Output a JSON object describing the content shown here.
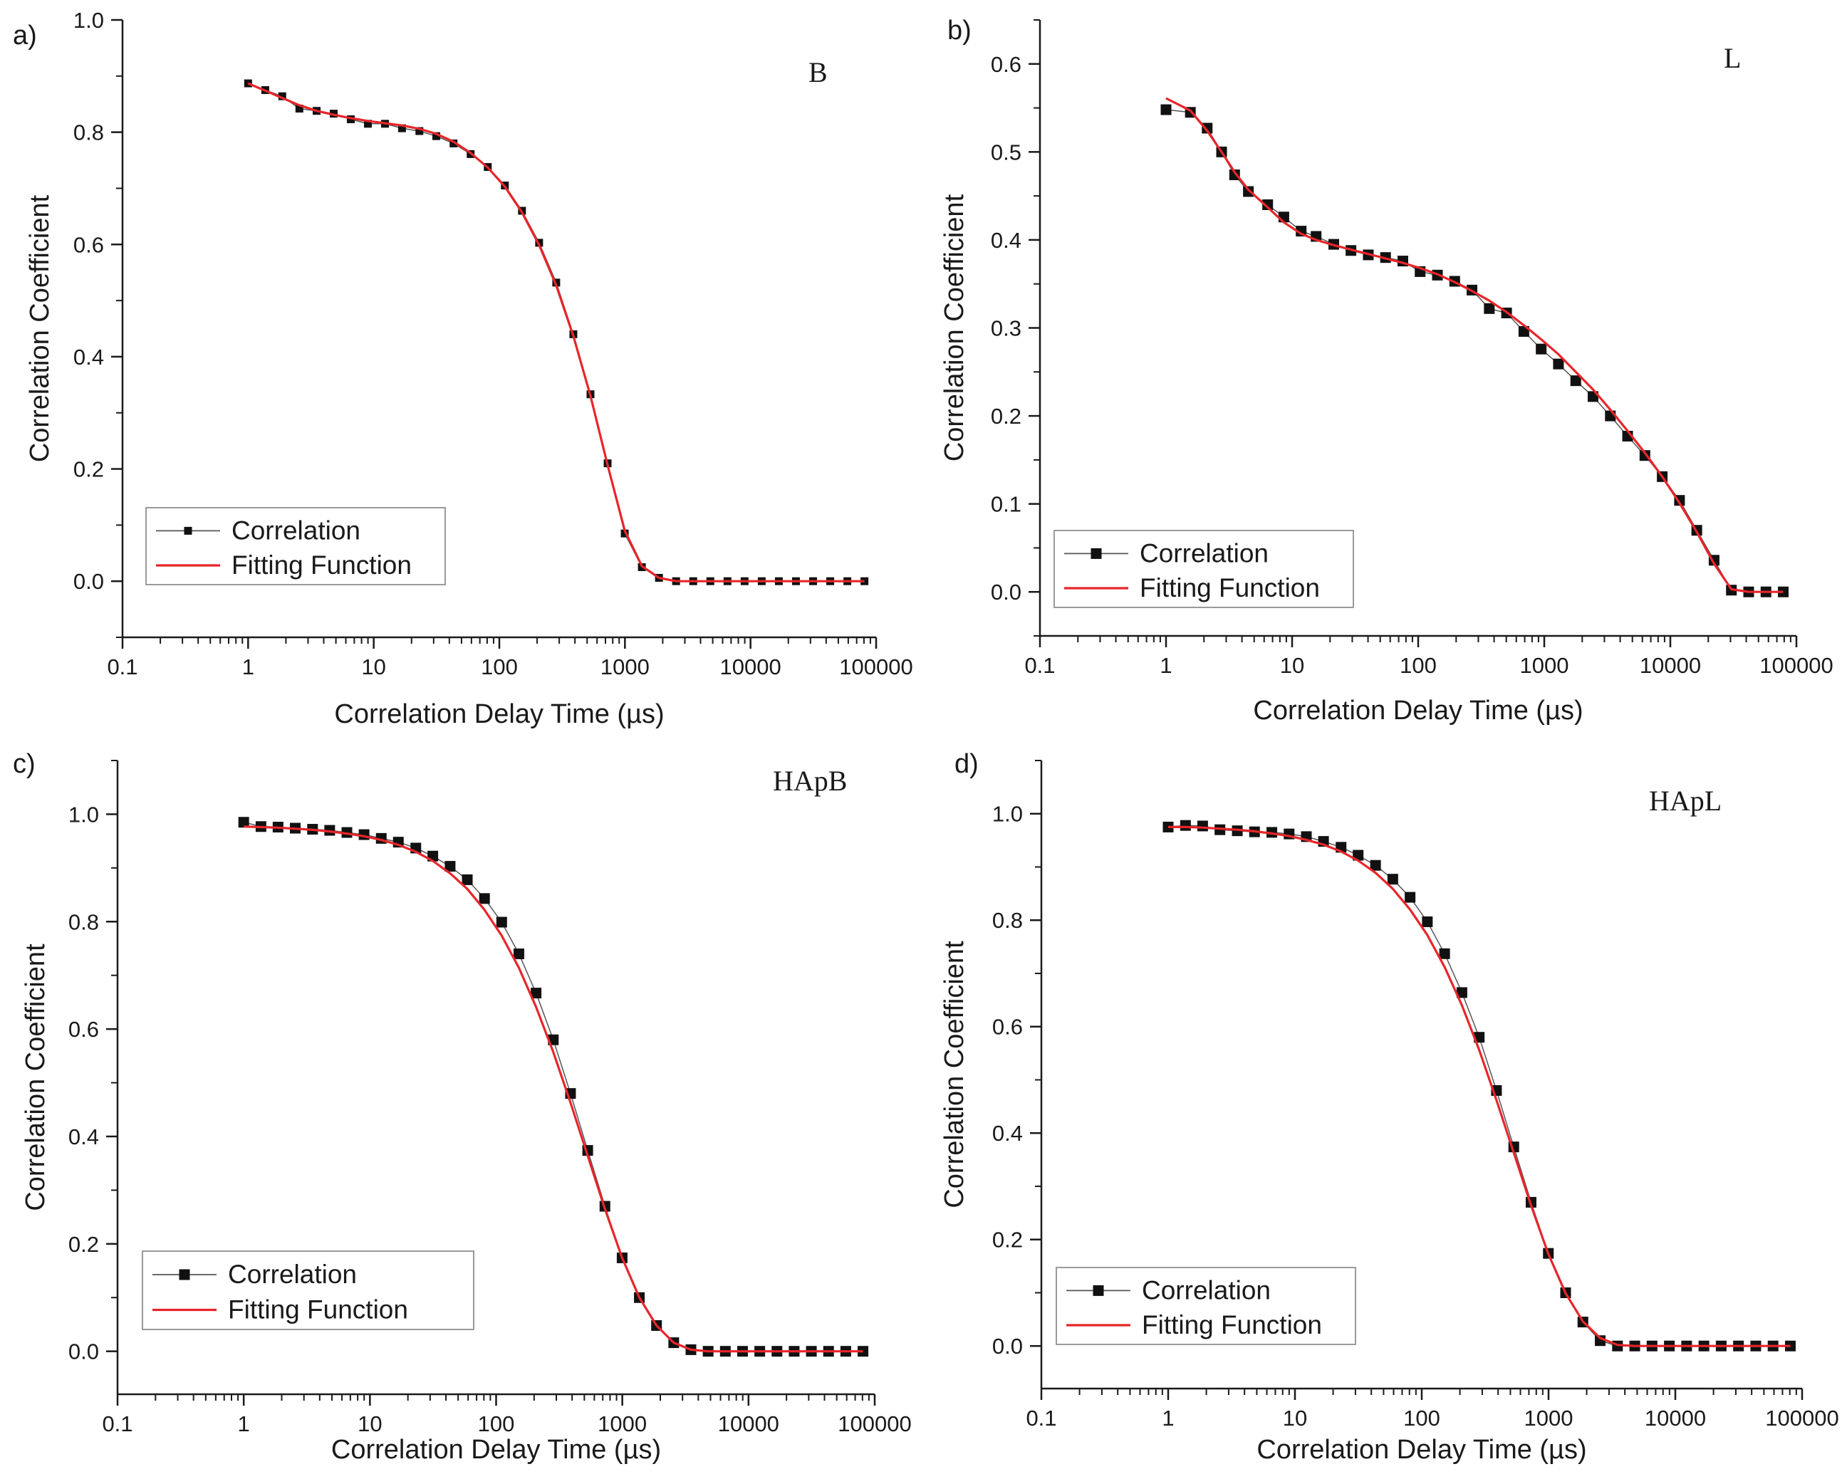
{
  "chart_data": [
    {
      "type": "scatter",
      "panel": "a)",
      "title": "B",
      "xlabel": "Correlation Delay Time (µs)",
      "ylabel": "Correlation Coefficient",
      "xscale": "log",
      "xlim": [
        0.1,
        100000
      ],
      "ylim": [
        -0.1,
        1.0
      ],
      "xticks": [
        "0.1",
        "1",
        "10",
        "100",
        "1000",
        "10000",
        "100000"
      ],
      "yticks": [
        "0.0",
        "0.2",
        "0.4",
        "0.6",
        "0.8",
        "1.0"
      ],
      "legend": [
        "Correlation",
        "Fitting Function"
      ],
      "legend_position": "bottom-left",
      "marker_size": "small",
      "x": [
        1.0,
        1.37,
        1.87,
        2.56,
        3.51,
        4.8,
        6.57,
        8.99,
        12.3,
        16.8,
        23.1,
        31.5,
        43.2,
        59.1,
        80.9,
        110.7,
        151.5,
        207.4,
        283.9,
        388.6,
        531.9,
        728.1,
        996.6,
        1364.1,
        1867.1,
        2555.6,
        3498.1,
        4788.1,
        6553.9,
        8970.8,
        12279.1,
        16807.4,
        23005.6,
        31489.4,
        43102.3,
        58997.7,
        80755.1
      ],
      "values": [
        0.887,
        0.875,
        0.864,
        0.842,
        0.838,
        0.833,
        0.823,
        0.815,
        0.815,
        0.807,
        0.802,
        0.793,
        0.78,
        0.761,
        0.738,
        0.705,
        0.66,
        0.603,
        0.532,
        0.44,
        0.333,
        0.21,
        0.085,
        0.025,
        0.006,
        0.0,
        0.0,
        0.0,
        0.0,
        0.0,
        0.0,
        0.0,
        0.0,
        0.0,
        0.0,
        0.0,
        0.0
      ],
      "fit": [
        0.887,
        0.874,
        0.861,
        0.848,
        0.838,
        0.831,
        0.825,
        0.82,
        0.816,
        0.812,
        0.806,
        0.797,
        0.783,
        0.763,
        0.737,
        0.703,
        0.657,
        0.599,
        0.527,
        0.437,
        0.33,
        0.207,
        0.09,
        0.027,
        0.006,
        0.0,
        0.0,
        0.0,
        0.0,
        0.0,
        0.0,
        0.0,
        0.0,
        0.0,
        0.0,
        0.0,
        0.0
      ]
    },
    {
      "type": "scatter",
      "panel": "b)",
      "title": "L",
      "xlabel": "Correlation Delay Time (µs)",
      "ylabel": "Correlation Coefficient",
      "xscale": "log",
      "xlim": [
        0.1,
        100000
      ],
      "ylim": [
        -0.05,
        0.65
      ],
      "xticks": [
        "0.1",
        "1",
        "10",
        "100",
        "1000",
        "10000",
        "100000"
      ],
      "yticks": [
        "0.0",
        "0.1",
        "0.2",
        "0.3",
        "0.4",
        "0.5",
        "0.6"
      ],
      "legend": [
        "Correlation",
        "Fitting Function"
      ],
      "legend_position": "bottom-left",
      "marker_size": "large",
      "x": [
        1.0,
        1.56,
        2.12,
        2.76,
        3.5,
        4.5,
        6.4,
        8.6,
        11.8,
        15.5,
        21.4,
        29.3,
        40.2,
        55.1,
        75.6,
        103.6,
        142.1,
        194.9,
        267.2,
        366.5,
        502.5,
        689.2,
        945.1,
        1296.0,
        1777.4,
        2437.4,
        3342.6,
        4584.0,
        6286.5,
        8621.2,
        11822.9,
        16213.9,
        22235.3,
        30493.5,
        41818.6,
        57349.9,
        78648.1
      ],
      "values": [
        0.548,
        0.545,
        0.527,
        0.5,
        0.474,
        0.455,
        0.44,
        0.426,
        0.41,
        0.404,
        0.395,
        0.388,
        0.383,
        0.38,
        0.376,
        0.364,
        0.36,
        0.353,
        0.343,
        0.322,
        0.317,
        0.296,
        0.276,
        0.259,
        0.24,
        0.222,
        0.2,
        0.177,
        0.155,
        0.131,
        0.104,
        0.07,
        0.036,
        0.002,
        0.0,
        0.0,
        0.0
      ],
      "fit": [
        0.561,
        0.547,
        0.524,
        0.5,
        0.477,
        0.457,
        0.437,
        0.42,
        0.407,
        0.4,
        0.394,
        0.389,
        0.384,
        0.379,
        0.374,
        0.368,
        0.361,
        0.352,
        0.342,
        0.331,
        0.318,
        0.303,
        0.287,
        0.27,
        0.25,
        0.23,
        0.207,
        0.183,
        0.158,
        0.131,
        0.101,
        0.068,
        0.032,
        0.003,
        0.0,
        0.0,
        0.0
      ]
    },
    {
      "type": "scatter",
      "panel": "c)",
      "title": "HApB",
      "xlabel": "Correlation Delay Time (µs)",
      "ylabel": "Correlation Coefficient",
      "xscale": "log",
      "xlim": [
        0.1,
        100000
      ],
      "ylim": [
        -0.08,
        1.1
      ],
      "xticks": [
        "0.1",
        "1",
        "10",
        "100",
        "1000",
        "10000",
        "100000"
      ],
      "yticks": [
        "0.0",
        "0.2",
        "0.4",
        "0.6",
        "0.8",
        "1.0"
      ],
      "legend": [
        "Correlation",
        "Fitting Function"
      ],
      "legend_position": "bottom-left",
      "marker_size": "large",
      "x": [
        1.0,
        1.37,
        1.87,
        2.56,
        3.51,
        4.8,
        6.57,
        8.99,
        12.3,
        16.8,
        23.1,
        31.5,
        43.2,
        59.1,
        80.9,
        110.7,
        151.5,
        207.4,
        283.9,
        388.6,
        531.9,
        728.1,
        996.6,
        1364.1,
        1867.1,
        2555.6,
        3498.1,
        4788.1,
        6553.9,
        8970.8,
        12279.1,
        16807.4,
        23005.6,
        31489.4,
        43102.3,
        58997.7,
        80755.1
      ],
      "values": [
        0.985,
        0.977,
        0.976,
        0.974,
        0.972,
        0.97,
        0.966,
        0.962,
        0.955,
        0.948,
        0.937,
        0.922,
        0.903,
        0.878,
        0.843,
        0.799,
        0.74,
        0.667,
        0.58,
        0.48,
        0.374,
        0.27,
        0.174,
        0.1,
        0.048,
        0.016,
        0.003,
        0.0,
        0.0,
        0.0,
        0.0,
        0.0,
        0.0,
        0.0,
        0.0,
        0.0,
        0.0
      ],
      "fit": [
        0.977,
        0.976,
        0.975,
        0.973,
        0.971,
        0.968,
        0.964,
        0.959,
        0.952,
        0.943,
        0.93,
        0.913,
        0.89,
        0.861,
        0.822,
        0.774,
        0.714,
        0.641,
        0.557,
        0.463,
        0.364,
        0.265,
        0.174,
        0.1,
        0.048,
        0.016,
        0.003,
        0.0,
        0.0,
        0.0,
        0.0,
        0.0,
        0.0,
        0.0,
        0.0,
        0.0,
        0.0
      ]
    },
    {
      "type": "scatter",
      "panel": "d)",
      "title": "HApL",
      "xlabel": "Correlation Delay Time (µs)",
      "ylabel": "Correlation Coefficient",
      "xscale": "log",
      "xlim": [
        0.1,
        100000
      ],
      "ylim": [
        -0.08,
        1.1
      ],
      "xticks": [
        "0.1",
        "1",
        "10",
        "100",
        "1000",
        "10000",
        "100000"
      ],
      "yticks": [
        "0.0",
        "0.2",
        "0.4",
        "0.6",
        "0.8",
        "1.0"
      ],
      "legend": [
        "Correlation",
        "Fitting Function"
      ],
      "legend_position": "bottom-left",
      "marker_size": "large",
      "x": [
        1.0,
        1.37,
        1.87,
        2.56,
        3.51,
        4.8,
        6.57,
        8.99,
        12.3,
        16.8,
        23.1,
        31.5,
        43.2,
        59.1,
        80.9,
        110.7,
        151.5,
        207.4,
        283.9,
        388.6,
        531.9,
        728.1,
        996.6,
        1364.1,
        1867.1,
        2555.6,
        3498.1,
        4788.1,
        6553.9,
        8970.8,
        12279.1,
        16807.4,
        23005.6,
        31489.4,
        43102.3,
        58997.7,
        80755.1
      ],
      "values": [
        0.975,
        0.978,
        0.977,
        0.97,
        0.968,
        0.966,
        0.965,
        0.962,
        0.957,
        0.948,
        0.937,
        0.922,
        0.903,
        0.877,
        0.843,
        0.797,
        0.737,
        0.664,
        0.58,
        0.48,
        0.374,
        0.27,
        0.174,
        0.1,
        0.045,
        0.01,
        0.0,
        0.0,
        0.0,
        0.0,
        0.0,
        0.0,
        0.0,
        0.0,
        0.0,
        0.0,
        0.0
      ],
      "fit": [
        0.975,
        0.975,
        0.974,
        0.972,
        0.97,
        0.967,
        0.963,
        0.958,
        0.951,
        0.942,
        0.929,
        0.912,
        0.889,
        0.859,
        0.82,
        0.772,
        0.712,
        0.64,
        0.556,
        0.462,
        0.363,
        0.264,
        0.173,
        0.099,
        0.046,
        0.015,
        0.002,
        0.0,
        0.0,
        0.0,
        0.0,
        0.0,
        0.0,
        0.0,
        0.0,
        0.0,
        0.0
      ]
    }
  ],
  "colors": {
    "axis": "#1a1a1a",
    "marker": "#111111",
    "data_line": "#555555",
    "fit_line": "#e8252a",
    "legend_border": "#9a9a9a"
  }
}
